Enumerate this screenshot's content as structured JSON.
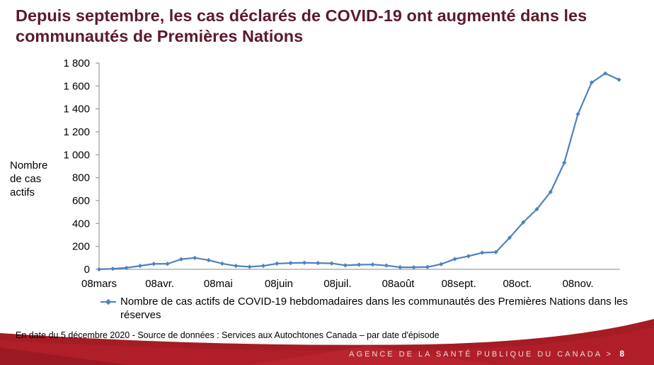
{
  "title": "Depuis septembre, les cas déclarés de COVID-19 ont augmenté dans les communautés de Premières Nations",
  "source_note": "En date du 5 décembre 2020 - Source de données : Services aux Autochtones Canada – par date d'épisode",
  "footer": {
    "agency": "AGENCE DE LA SANTÉ PUBLIQUE DU CANADA >",
    "page_number": "8"
  },
  "colors": {
    "series": "#4f81bd",
    "title": "#5c1a2b",
    "footer": "#a51c24"
  },
  "chart_data": {
    "type": "line",
    "title": "",
    "ylabel": "Nombre de cas actifs",
    "xlabel": "",
    "ylim": [
      0,
      1800
    ],
    "yticks": [
      0,
      200,
      400,
      600,
      800,
      1000,
      1200,
      1400,
      1600,
      1800
    ],
    "ytick_labels": [
      "0",
      "200",
      "400",
      "600",
      "800",
      "1 000",
      "1 200",
      "1 400",
      "1 600",
      "1 800"
    ],
    "x_unit": "weeks since 8 March 2020",
    "xticks": [
      {
        "label": "08mars",
        "week": 0
      },
      {
        "label": "08avr.",
        "week": 4.43
      },
      {
        "label": "08mai",
        "week": 8.71
      },
      {
        "label": "08juin",
        "week": 13.14
      },
      {
        "label": "08juil.",
        "week": 17.43
      },
      {
        "label": "08août",
        "week": 21.86
      },
      {
        "label": "08sept.",
        "week": 26.29
      },
      {
        "label": "08oct.",
        "week": 30.57
      },
      {
        "label": "08nov.",
        "week": 35
      }
    ],
    "grid": false,
    "legend_position": "bottom",
    "series": [
      {
        "name": "Nombre de cas actifs de COVID-19 hebdomadaires dans les communautés des Premières Nations dans les réserves",
        "values": [
          0,
          5,
          13,
          30,
          48,
          48,
          88,
          100,
          80,
          50,
          30,
          22,
          30,
          50,
          55,
          57,
          55,
          52,
          35,
          40,
          42,
          33,
          18,
          18,
          20,
          45,
          90,
          115,
          145,
          150,
          275,
          410,
          525,
          675,
          930,
          1355,
          1630,
          1710,
          1655
        ]
      }
    ]
  }
}
